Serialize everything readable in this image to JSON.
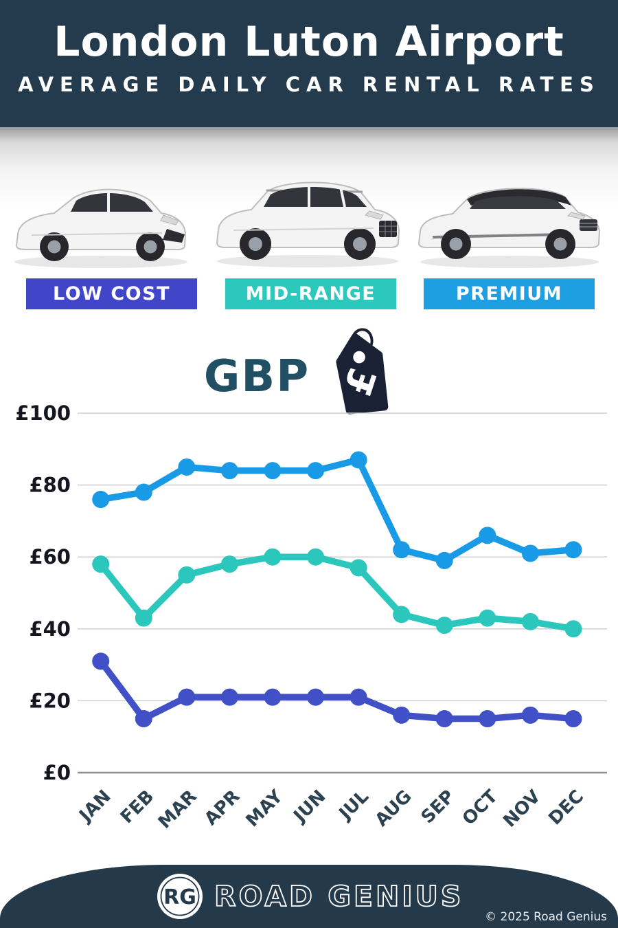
{
  "header": {
    "title": "London Luton Airport",
    "subtitle": "AVERAGE DAILY CAR RENTAL RATES"
  },
  "categories": [
    {
      "label": "LOW COST",
      "color": "#4145c8",
      "car": "compact-hatchback"
    },
    {
      "label": "MID-RANGE",
      "color": "#2cc8bd",
      "car": "mid-size-suv"
    },
    {
      "label": "PREMIUM",
      "color": "#1d9fe2",
      "car": "luxury-suv"
    }
  ],
  "currency": {
    "label": "GBP",
    "symbol": "£"
  },
  "chart_data": {
    "type": "line",
    "categories": [
      "JAN",
      "FEB",
      "MAR",
      "APR",
      "MAY",
      "JUN",
      "JUL",
      "AUG",
      "SEP",
      "OCT",
      "NOV",
      "DEC"
    ],
    "series": [
      {
        "name": "Premium",
        "color": "#189ae6",
        "values": [
          76,
          78,
          85,
          84,
          84,
          84,
          87,
          62,
          59,
          66,
          61,
          62
        ]
      },
      {
        "name": "Mid-Range",
        "color": "#2bc7bd",
        "values": [
          58,
          43,
          55,
          58,
          60,
          60,
          57,
          44,
          41,
          43,
          42,
          40
        ]
      },
      {
        "name": "Low Cost",
        "color": "#4150c7",
        "values": [
          31,
          15,
          21,
          21,
          21,
          21,
          21,
          16,
          15,
          15,
          16,
          15
        ]
      }
    ],
    "title": "",
    "xlabel": "",
    "ylabel": "",
    "y_ticks": [
      "£0",
      "£20",
      "£40",
      "£60",
      "£80",
      "£100"
    ],
    "ylim": [
      0,
      100
    ],
    "grid": true,
    "legend_position": "none",
    "currency_prefix": "£"
  },
  "footer": {
    "logo_text": "RG",
    "brand": "ROAD GENIUS",
    "copyright": "© 2025 Road Genius"
  },
  "colors": {
    "brand_navy": "#233b4c",
    "footer_navy": "#24394a",
    "axis_label": "#15151f",
    "month_label": "#2c4250",
    "gbp_text": "#215064",
    "tag_icon": "#1a2134"
  }
}
